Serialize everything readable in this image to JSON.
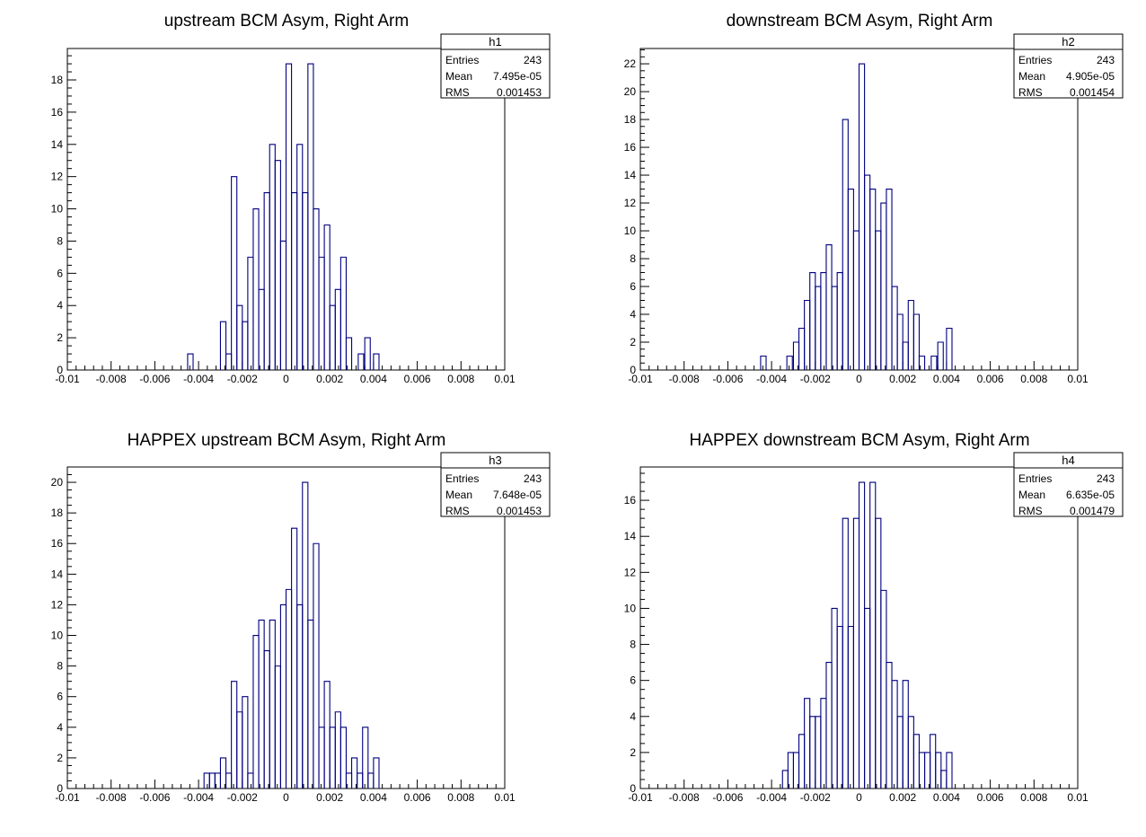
{
  "chart_data": [
    {
      "type": "bar",
      "histogram": true,
      "title": "upstream BCM Asym, Right Arm",
      "stats": {
        "name": "h1",
        "rows": [
          {
            "label": "Entries",
            "value": "243"
          },
          {
            "label": "Mean",
            "value": "7.495e-05"
          },
          {
            "label": "RMS",
            "value": "0.001453"
          }
        ]
      },
      "xlim": [
        -0.01,
        0.01
      ],
      "ylim": [
        0,
        19.95
      ],
      "bin_width": 0.00025,
      "x_ticks": [
        "-0.01",
        "-0.008",
        "-0.006",
        "-0.004",
        "-0.002",
        "0",
        "0.002",
        "0.004",
        "0.006",
        "0.008",
        "0.01"
      ],
      "y_ticks": [
        "0",
        "2",
        "4",
        "6",
        "8",
        "10",
        "12",
        "14",
        "16",
        "18"
      ],
      "xlabel": "",
      "ylabel": "",
      "bins": [
        {
          "x": -0.0045,
          "y": 1
        },
        {
          "x": -0.003,
          "y": 3
        },
        {
          "x": -0.00275,
          "y": 1
        },
        {
          "x": -0.0025,
          "y": 12
        },
        {
          "x": -0.00225,
          "y": 4
        },
        {
          "x": -0.002,
          "y": 3
        },
        {
          "x": -0.00175,
          "y": 7
        },
        {
          "x": -0.0015,
          "y": 10
        },
        {
          "x": -0.00125,
          "y": 5
        },
        {
          "x": -0.001,
          "y": 11
        },
        {
          "x": -0.00075,
          "y": 14
        },
        {
          "x": -0.0005,
          "y": 13
        },
        {
          "x": -0.00025,
          "y": 8
        },
        {
          "x": 0,
          "y": 19
        },
        {
          "x": 0.00025,
          "y": 11
        },
        {
          "x": 0.0005,
          "y": 14
        },
        {
          "x": 0.00075,
          "y": 11
        },
        {
          "x": 0.001,
          "y": 19
        },
        {
          "x": 0.00125,
          "y": 10
        },
        {
          "x": 0.0015,
          "y": 7
        },
        {
          "x": 0.00175,
          "y": 9
        },
        {
          "x": 0.002,
          "y": 4
        },
        {
          "x": 0.00225,
          "y": 5
        },
        {
          "x": 0.0025,
          "y": 7
        },
        {
          "x": 0.00275,
          "y": 2
        },
        {
          "x": 0.0033,
          "y": 1
        },
        {
          "x": 0.0036,
          "y": 2
        },
        {
          "x": 0.004,
          "y": 1
        }
      ]
    },
    {
      "type": "bar",
      "histogram": true,
      "title": "downstream BCM Asym, Right Arm",
      "stats": {
        "name": "h2",
        "rows": [
          {
            "label": "Entries",
            "value": "243"
          },
          {
            "label": "Mean",
            "value": "4.905e-05"
          },
          {
            "label": "RMS",
            "value": "0.001454"
          }
        ]
      },
      "xlim": [
        -0.01,
        0.01
      ],
      "ylim": [
        0,
        23.1
      ],
      "bin_width": 0.00025,
      "x_ticks": [
        "-0.01",
        "-0.008",
        "-0.006",
        "-0.004",
        "-0.002",
        "0",
        "0.002",
        "0.004",
        "0.006",
        "0.008",
        "0.01"
      ],
      "y_ticks": [
        "0",
        "2",
        "4",
        "6",
        "8",
        "10",
        "12",
        "14",
        "16",
        "18",
        "20",
        "22"
      ],
      "xlabel": "",
      "ylabel": "",
      "bins": [
        {
          "x": -0.0045,
          "y": 1
        },
        {
          "x": -0.0033,
          "y": 1
        },
        {
          "x": -0.003,
          "y": 2
        },
        {
          "x": -0.00275,
          "y": 3
        },
        {
          "x": -0.0025,
          "y": 5
        },
        {
          "x": -0.00225,
          "y": 7
        },
        {
          "x": -0.002,
          "y": 6
        },
        {
          "x": -0.00175,
          "y": 7
        },
        {
          "x": -0.0015,
          "y": 9
        },
        {
          "x": -0.00125,
          "y": 6
        },
        {
          "x": -0.001,
          "y": 7
        },
        {
          "x": -0.00075,
          "y": 18
        },
        {
          "x": -0.0005,
          "y": 13
        },
        {
          "x": -0.00025,
          "y": 10
        },
        {
          "x": 0,
          "y": 22
        },
        {
          "x": 0.00025,
          "y": 14
        },
        {
          "x": 0.0005,
          "y": 13
        },
        {
          "x": 0.00075,
          "y": 10
        },
        {
          "x": 0.001,
          "y": 12
        },
        {
          "x": 0.00125,
          "y": 13
        },
        {
          "x": 0.0015,
          "y": 6
        },
        {
          "x": 0.00175,
          "y": 4
        },
        {
          "x": 0.002,
          "y": 2
        },
        {
          "x": 0.00225,
          "y": 5
        },
        {
          "x": 0.0025,
          "y": 4
        },
        {
          "x": 0.00275,
          "y": 1
        },
        {
          "x": 0.0033,
          "y": 1
        },
        {
          "x": 0.0036,
          "y": 2
        },
        {
          "x": 0.004,
          "y": 3
        }
      ]
    },
    {
      "type": "bar",
      "histogram": true,
      "title": "HAPPEX upstream BCM Asym, Right Arm",
      "stats": {
        "name": "h3",
        "rows": [
          {
            "label": "Entries",
            "value": "243"
          },
          {
            "label": "Mean",
            "value": "7.648e-05"
          },
          {
            "label": "RMS",
            "value": "0.001453"
          }
        ]
      },
      "xlim": [
        -0.01,
        0.01
      ],
      "ylim": [
        0,
        21
      ],
      "bin_width": 0.00025,
      "x_ticks": [
        "-0.01",
        "-0.008",
        "-0.006",
        "-0.004",
        "-0.002",
        "0",
        "0.002",
        "0.004",
        "0.006",
        "0.008",
        "0.01"
      ],
      "y_ticks": [
        "0",
        "2",
        "4",
        "6",
        "8",
        "10",
        "12",
        "14",
        "16",
        "18",
        "20"
      ],
      "xlabel": "",
      "ylabel": "",
      "bins": [
        {
          "x": -0.00375,
          "y": 1
        },
        {
          "x": -0.0035,
          "y": 1
        },
        {
          "x": -0.00325,
          "y": 1
        },
        {
          "x": -0.003,
          "y": 2
        },
        {
          "x": -0.00275,
          "y": 1
        },
        {
          "x": -0.0025,
          "y": 7
        },
        {
          "x": -0.00225,
          "y": 5
        },
        {
          "x": -0.002,
          "y": 6
        },
        {
          "x": -0.00175,
          "y": 1
        },
        {
          "x": -0.0015,
          "y": 10
        },
        {
          "x": -0.00125,
          "y": 11
        },
        {
          "x": -0.001,
          "y": 9
        },
        {
          "x": -0.00075,
          "y": 11
        },
        {
          "x": -0.0005,
          "y": 8
        },
        {
          "x": -0.00025,
          "y": 12
        },
        {
          "x": 0,
          "y": 13
        },
        {
          "x": 0.00025,
          "y": 17
        },
        {
          "x": 0.0005,
          "y": 12
        },
        {
          "x": 0.00075,
          "y": 20
        },
        {
          "x": 0.001,
          "y": 11
        },
        {
          "x": 0.00125,
          "y": 16
        },
        {
          "x": 0.0015,
          "y": 4
        },
        {
          "x": 0.00175,
          "y": 7
        },
        {
          "x": 0.002,
          "y": 4
        },
        {
          "x": 0.00225,
          "y": 5
        },
        {
          "x": 0.0025,
          "y": 4
        },
        {
          "x": 0.00275,
          "y": 1
        },
        {
          "x": 0.003,
          "y": 2
        },
        {
          "x": 0.00325,
          "y": 1
        },
        {
          "x": 0.0035,
          "y": 4
        },
        {
          "x": 0.00375,
          "y": 1
        },
        {
          "x": 0.004,
          "y": 2
        }
      ]
    },
    {
      "type": "bar",
      "histogram": true,
      "title": "HAPPEX downstream BCM Asym, Right Arm",
      "stats": {
        "name": "h4",
        "rows": [
          {
            "label": "Entries",
            "value": "243"
          },
          {
            "label": "Mean",
            "value": "6.635e-05"
          },
          {
            "label": "RMS",
            "value": "0.001479"
          }
        ]
      },
      "xlim": [
        -0.01,
        0.01
      ],
      "ylim": [
        0,
        17.85
      ],
      "bin_width": 0.00025,
      "x_ticks": [
        "-0.01",
        "-0.008",
        "-0.006",
        "-0.004",
        "-0.002",
        "0",
        "0.002",
        "0.004",
        "0.006",
        "0.008",
        "0.01"
      ],
      "y_ticks": [
        "0",
        "2",
        "4",
        "6",
        "8",
        "10",
        "12",
        "14",
        "16"
      ],
      "xlabel": "",
      "ylabel": "",
      "bins": [
        {
          "x": -0.0035,
          "y": 1
        },
        {
          "x": -0.00325,
          "y": 2
        },
        {
          "x": -0.003,
          "y": 2
        },
        {
          "x": -0.00275,
          "y": 3
        },
        {
          "x": -0.0025,
          "y": 5
        },
        {
          "x": -0.00225,
          "y": 4
        },
        {
          "x": -0.002,
          "y": 4
        },
        {
          "x": -0.00175,
          "y": 5
        },
        {
          "x": -0.0015,
          "y": 7
        },
        {
          "x": -0.00125,
          "y": 10
        },
        {
          "x": -0.001,
          "y": 9
        },
        {
          "x": -0.00075,
          "y": 15
        },
        {
          "x": -0.0005,
          "y": 9
        },
        {
          "x": -0.00025,
          "y": 15
        },
        {
          "x": 0,
          "y": 17
        },
        {
          "x": 0.00025,
          "y": 10
        },
        {
          "x": 0.0005,
          "y": 17
        },
        {
          "x": 0.00075,
          "y": 15
        },
        {
          "x": 0.001,
          "y": 11
        },
        {
          "x": 0.00125,
          "y": 7
        },
        {
          "x": 0.0015,
          "y": 6
        },
        {
          "x": 0.00175,
          "y": 4
        },
        {
          "x": 0.002,
          "y": 6
        },
        {
          "x": 0.00225,
          "y": 4
        },
        {
          "x": 0.0025,
          "y": 3
        },
        {
          "x": 0.00275,
          "y": 2
        },
        {
          "x": 0.003,
          "y": 2
        },
        {
          "x": 0.00325,
          "y": 3
        },
        {
          "x": 0.0035,
          "y": 2
        },
        {
          "x": 0.00375,
          "y": 1
        },
        {
          "x": 0.004,
          "y": 2
        }
      ]
    }
  ]
}
